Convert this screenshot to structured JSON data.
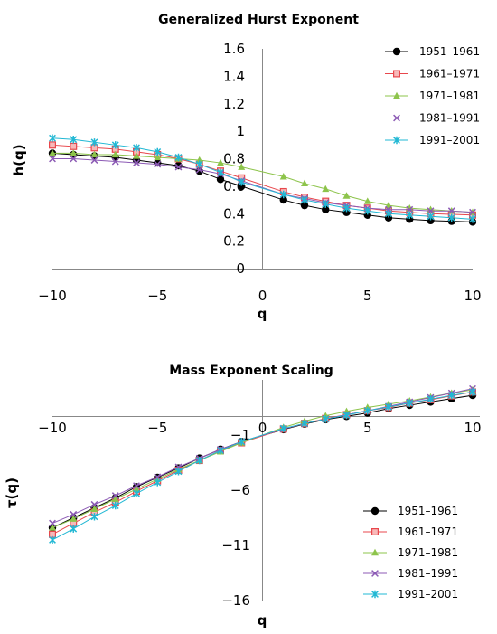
{
  "chart_data": [
    {
      "type": "line",
      "title": "Generalized Hurst Exponent",
      "xlabel": "q",
      "ylabel": "h(q)",
      "xlim": [
        -10,
        10
      ],
      "ylim": [
        0,
        1.6
      ],
      "x_ticks": [
        "−10",
        "−5",
        "0",
        "5",
        "10"
      ],
      "y_ticks": [
        "0",
        "0.2",
        "0.4",
        "0.6",
        "0.8",
        "1",
        "1.2",
        "1.4",
        "1.6"
      ],
      "legend_position": "top-right",
      "grid": false,
      "x": [
        -10,
        -9,
        -8,
        -7,
        -6,
        -5,
        -4,
        -3,
        -2,
        -1,
        1,
        2,
        3,
        4,
        5,
        6,
        7,
        8,
        9,
        10
      ],
      "series": [
        {
          "name": "1951–1961",
          "color": "#000000",
          "marker": "circle",
          "values": [
            0.84,
            0.83,
            0.82,
            0.81,
            0.79,
            0.77,
            0.75,
            0.71,
            0.65,
            0.6,
            0.5,
            0.46,
            0.43,
            0.41,
            0.39,
            0.37,
            0.36,
            0.35,
            0.345,
            0.34
          ]
        },
        {
          "name": "1961–1971",
          "color": "#e8474c",
          "marker": "square",
          "values": [
            0.9,
            0.89,
            0.88,
            0.87,
            0.85,
            0.83,
            0.8,
            0.76,
            0.71,
            0.66,
            0.56,
            0.52,
            0.49,
            0.46,
            0.44,
            0.42,
            0.41,
            0.4,
            0.395,
            0.39
          ]
        },
        {
          "name": "1971–1981",
          "color": "#8dc44b",
          "marker": "triangle",
          "values": [
            0.84,
            0.84,
            0.83,
            0.83,
            0.82,
            0.81,
            0.8,
            0.79,
            0.77,
            0.74,
            0.67,
            0.62,
            0.58,
            0.53,
            0.49,
            0.46,
            0.44,
            0.43,
            0.42,
            0.41
          ]
        },
        {
          "name": "1981–1991",
          "color": "#8c5ab5",
          "marker": "x",
          "values": [
            0.8,
            0.8,
            0.79,
            0.78,
            0.77,
            0.76,
            0.74,
            0.72,
            0.69,
            0.64,
            0.54,
            0.51,
            0.48,
            0.46,
            0.44,
            0.43,
            0.43,
            0.42,
            0.42,
            0.41
          ]
        },
        {
          "name": "1991–2001",
          "color": "#22b8d4",
          "marker": "star",
          "values": [
            0.95,
            0.94,
            0.92,
            0.9,
            0.88,
            0.85,
            0.81,
            0.76,
            0.7,
            0.63,
            0.54,
            0.5,
            0.47,
            0.44,
            0.42,
            0.4,
            0.39,
            0.38,
            0.37,
            0.36
          ]
        }
      ]
    },
    {
      "type": "line",
      "title": "Mass Exponent Scaling",
      "xlabel": "q",
      "ylabel": "τ(q)",
      "xlim": [
        -10,
        10
      ],
      "ylim": [
        -16,
        4
      ],
      "x_ticks": [
        "−10",
        "−5",
        "0",
        "5",
        "10"
      ],
      "y_ticks": [
        "−16",
        "−11",
        "−6",
        "−1"
      ],
      "legend_position": "bottom-right",
      "grid": false,
      "x": [
        -10,
        -9,
        -8,
        -7,
        -6,
        -5,
        -4,
        -3,
        -2,
        -1,
        1,
        2,
        3,
        4,
        5,
        6,
        7,
        8,
        9,
        10
      ],
      "series": [
        {
          "name": "1951–1961",
          "color": "#000000",
          "marker": "circle",
          "values": [
            -9.4,
            -8.5,
            -7.6,
            -6.7,
            -5.7,
            -4.85,
            -4.0,
            -3.1,
            -2.3,
            -1.6,
            -0.5,
            0.0,
            0.4,
            0.7,
            1.0,
            1.4,
            1.7,
            2.0,
            2.3,
            2.6
          ]
        },
        {
          "name": "1961–1971",
          "color": "#e8474c",
          "marker": "square",
          "values": [
            -10.0,
            -9.0,
            -8.0,
            -7.1,
            -6.1,
            -5.15,
            -4.2,
            -3.3,
            -2.4,
            -1.7,
            -0.45,
            0.05,
            0.5,
            0.85,
            1.2,
            1.5,
            1.9,
            2.2,
            2.55,
            2.9
          ]
        },
        {
          "name": "1971–1981",
          "color": "#8dc44b",
          "marker": "triangle",
          "values": [
            -9.4,
            -8.6,
            -7.7,
            -6.8,
            -5.9,
            -5.0,
            -4.1,
            -3.3,
            -2.5,
            -1.7,
            -0.3,
            0.25,
            0.75,
            1.15,
            1.5,
            1.8,
            2.1,
            2.45,
            2.8,
            3.1
          ]
        },
        {
          "name": "1981–1991",
          "color": "#8c5ab5",
          "marker": "x",
          "values": [
            -9.0,
            -8.2,
            -7.3,
            -6.5,
            -5.6,
            -4.8,
            -3.9,
            -3.1,
            -2.3,
            -1.6,
            -0.45,
            0.05,
            0.45,
            0.85,
            1.2,
            1.6,
            2.0,
            2.4,
            2.8,
            3.2
          ]
        },
        {
          "name": "1991–2001",
          "color": "#22b8d4",
          "marker": "star",
          "values": [
            -10.5,
            -9.5,
            -8.4,
            -7.4,
            -6.3,
            -5.3,
            -4.3,
            -3.3,
            -2.4,
            -1.6,
            -0.4,
            0.05,
            0.45,
            0.8,
            1.2,
            1.55,
            1.9,
            2.25,
            2.6,
            2.9
          ]
        }
      ]
    }
  ]
}
